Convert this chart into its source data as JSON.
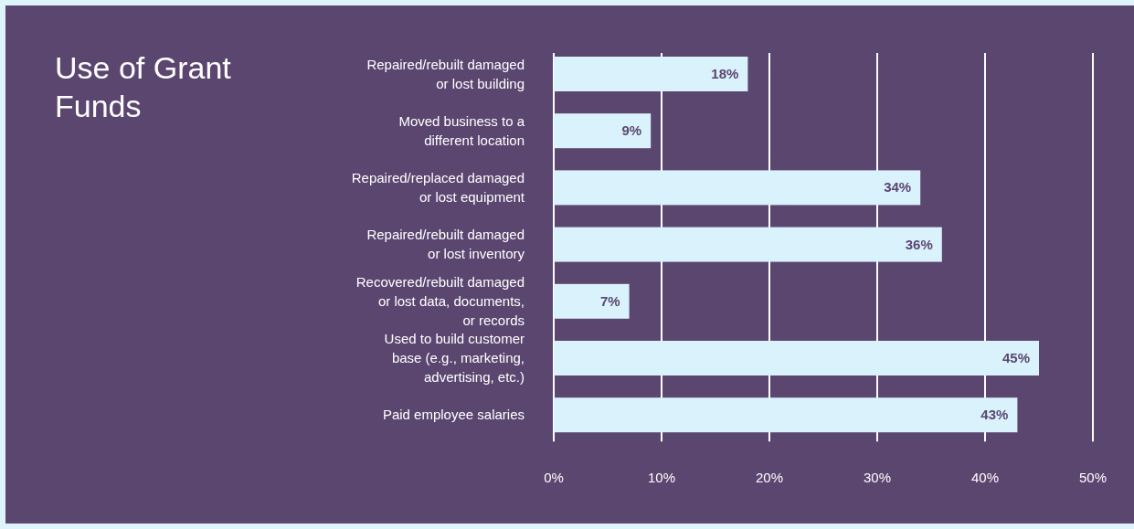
{
  "chart_data": {
    "type": "bar",
    "orientation": "horizontal",
    "title": "Use of Grant Funds",
    "categories": [
      "Repaired/rebuilt damaged or lost building",
      "Moved business to a different location",
      "Repaired/replaced damaged or lost equipment",
      "Repaired/rebuilt damaged or lost inventory",
      "Recovered/rebuilt damaged or lost data, documents, or records",
      "Used to build customer base (e.g., marketing, advertising, etc.)",
      "Paid employee salaries"
    ],
    "values": [
      18,
      9,
      34,
      36,
      7,
      45,
      43
    ],
    "color": "#d9f2fb",
    "value_labels": [
      "18%",
      "9%",
      "34%",
      "36%",
      "7%",
      "45%",
      "43%"
    ],
    "xlim": [
      0,
      50
    ],
    "xticks": [
      {
        "value": 0,
        "label": "0%"
      },
      {
        "value": 10,
        "label": "10%"
      },
      {
        "value": 20,
        "label": "20%"
      },
      {
        "value": 30,
        "label": "30%"
      },
      {
        "value": 40,
        "label": "40%"
      },
      {
        "value": 50,
        "label": "50%"
      }
    ],
    "grid": "x"
  }
}
